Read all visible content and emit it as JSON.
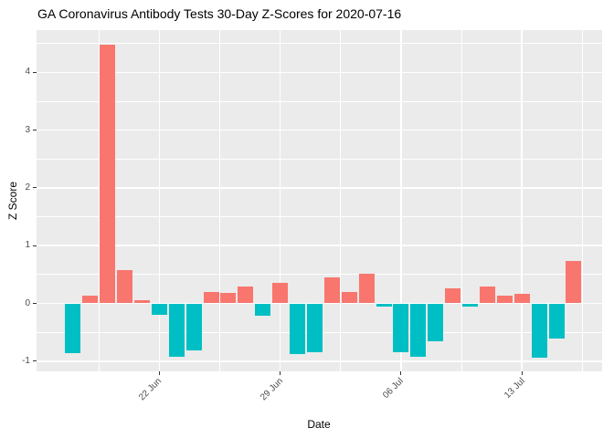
{
  "title": "GA Coronavirus Antibody Tests 30-Day Z-Scores for 2020-07-16",
  "chart_data": {
    "type": "bar",
    "title": "GA Coronavirus Antibody Tests 30-Day Z-Scores for 2020-07-16",
    "xlabel": "Date",
    "ylabel": "Z Score",
    "x": [
      "2020-06-17",
      "2020-06-18",
      "2020-06-19",
      "2020-06-20",
      "2020-06-21",
      "2020-06-22",
      "2020-06-23",
      "2020-06-24",
      "2020-06-25",
      "2020-06-26",
      "2020-06-27",
      "2020-06-28",
      "2020-06-29",
      "2020-06-30",
      "2020-07-01",
      "2020-07-02",
      "2020-07-03",
      "2020-07-04",
      "2020-07-05",
      "2020-07-06",
      "2020-07-07",
      "2020-07-08",
      "2020-07-09",
      "2020-07-10",
      "2020-07-11",
      "2020-07-12",
      "2020-07-13",
      "2020-07-14",
      "2020-07-15",
      "2020-07-16"
    ],
    "values": [
      -0.86,
      0.13,
      4.48,
      0.57,
      0.06,
      -0.19,
      -0.92,
      -0.81,
      0.2,
      0.18,
      0.29,
      -0.22,
      0.35,
      -0.88,
      -0.85,
      0.45,
      0.2,
      0.51,
      -0.05,
      -0.85,
      -0.92,
      -0.65,
      0.26,
      -0.06,
      0.29,
      0.14,
      0.16,
      -0.94,
      -0.61,
      0.73
    ],
    "x_ticks": [
      {
        "date": "2020-06-22",
        "label": "22 Jun"
      },
      {
        "date": "2020-06-29",
        "label": "29 Jun"
      },
      {
        "date": "2020-07-06",
        "label": "06 Jul"
      },
      {
        "date": "2020-07-13",
        "label": "13 Jul"
      }
    ],
    "y_ticks": [
      -1,
      0,
      1,
      2,
      3,
      4
    ],
    "ylim": [
      -1.17,
      4.73
    ],
    "grid": "major-and-minor",
    "legend": "none",
    "colors": {
      "positive": "#F8766D",
      "negative": "#00BFC4",
      "panel_background": "#EBEBEB",
      "gridline": "#FFFFFF",
      "axis_text": "#4D4D4D",
      "tick_mark": "#333333",
      "title_text": "#000000"
    }
  }
}
